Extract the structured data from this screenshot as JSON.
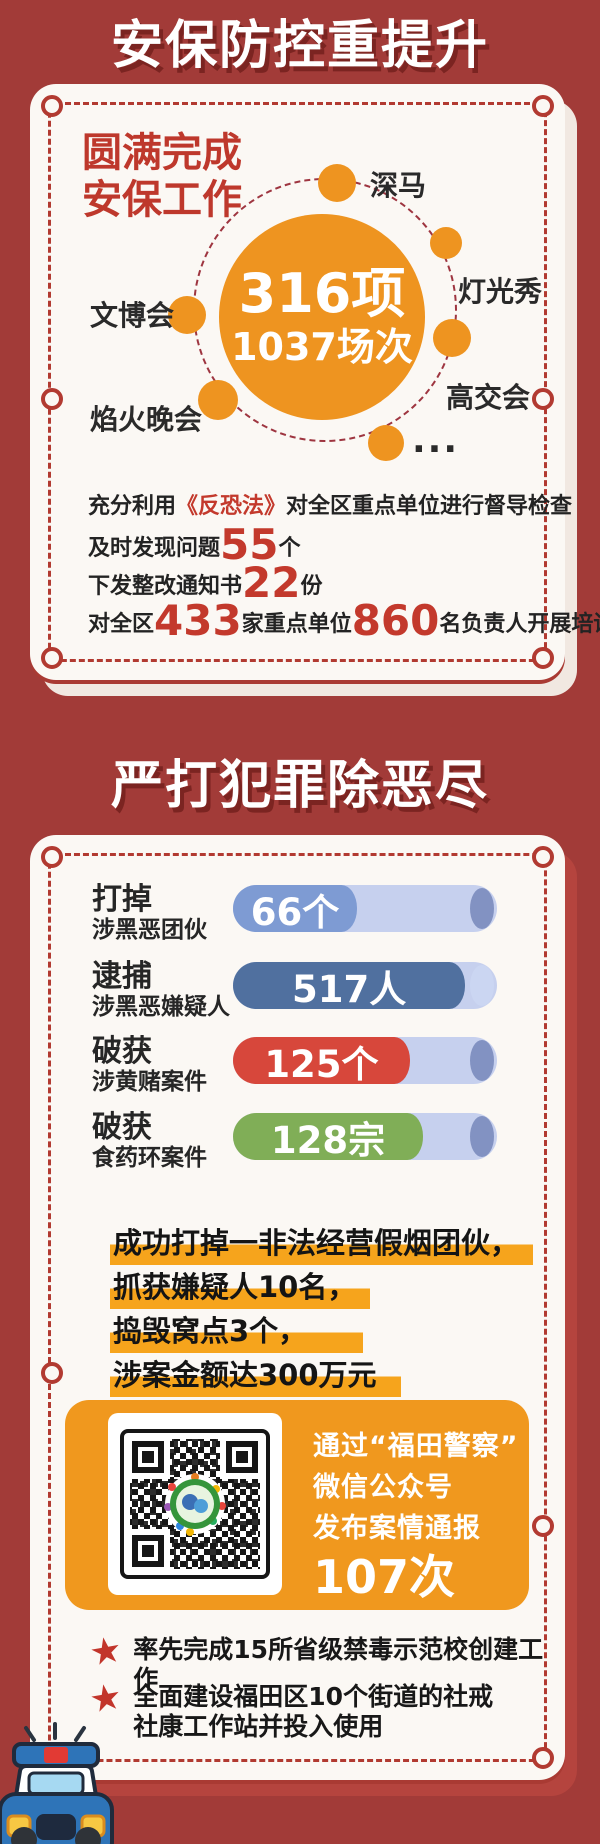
{
  "page": {
    "bg_color": "#A23B38",
    "accent_red": "#C3392C",
    "orange": "#EE9420",
    "card_bg": "#FBF8F4"
  },
  "section_security": {
    "title": "安保防控重提升",
    "lead_line1": "圆满完成",
    "lead_line2": "安保工作",
    "hub": {
      "line1": "316项",
      "line2": "1037场次"
    },
    "satellites": [
      {
        "label": "深马"
      },
      {
        "label": "灯光秀"
      },
      {
        "label": "高交会"
      },
      {
        "label": "文博会"
      },
      {
        "label": "焰火晚会"
      },
      {
        "label": "..."
      }
    ],
    "facts": {
      "f1_pre": "充分利用",
      "f1_law": "《反恐法》",
      "f1_post": "对全区重点单位进行督导检查",
      "f2_pre": "及时发现问题",
      "f2_num": "55",
      "f2_unit": "个",
      "f3_pre": "下发整改通知书",
      "f3_num": "22",
      "f3_unit": "份",
      "f4_pre": "对全区",
      "f4_num1": "433",
      "f4_mid": "家重点单位",
      "f4_num2": "860",
      "f4_post": "名负责人开展培训"
    }
  },
  "section_crackdown": {
    "title": "严打犯罪除恶尽",
    "chart_data": {
      "type": "bar",
      "orientation": "horizontal",
      "title": "严打犯罪除恶尽",
      "categories": [
        "涉黑恶团伙",
        "涉黑恶嫌疑人",
        "涉黄赌案件",
        "食药环案件"
      ],
      "values": [
        66,
        517,
        125,
        128
      ],
      "rows": [
        {
          "action": "打掉",
          "category": "涉黑恶团伙",
          "value": 66,
          "unit": "个",
          "label": "66个",
          "color": "#7E9BD3",
          "fill_pct": 47,
          "cap_color": "#8292C2"
        },
        {
          "action": "逮捕",
          "category": "涉黑恶嫌疑人",
          "value": 517,
          "unit": "人",
          "label": "517人",
          "color": "#50709F",
          "fill_pct": 88,
          "cap_color": "#CBD6F2"
        },
        {
          "action": "破获",
          "category": "涉黄赌案件",
          "value": 125,
          "unit": "个",
          "label": "125个",
          "color": "#D7473B",
          "fill_pct": 67,
          "cap_color": "#8292C2"
        },
        {
          "action": "破获",
          "category": "食药环案件",
          "value": 128,
          "unit": "宗",
          "label": "128宗",
          "color": "#80AE57",
          "fill_pct": 72,
          "cap_color": "#8292C2"
        }
      ]
    },
    "highlights": [
      "成功打掉一非法经营假烟团伙，",
      "抓获嫌疑人10名，",
      "捣毁窝点3个，",
      "涉案金额达300万元"
    ],
    "qr_panel": {
      "line1": "通过“福田警察”",
      "line2": "微信公众号",
      "line3": "发布案情通报",
      "count": "107次"
    },
    "star_items": [
      "率先完成15所省级禁毒示范校创建工作",
      "全面建设福田区10个街道的社戒社康工作站并投入使用"
    ]
  }
}
